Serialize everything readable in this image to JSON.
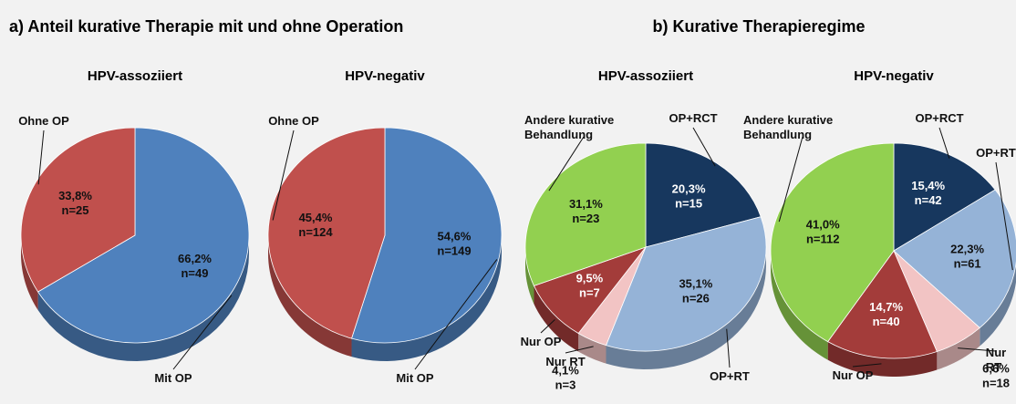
{
  "headings": [
    "a) Anteil kurative Therapie mit und ohne Operation",
    "b) Kurative Therapieregime"
  ],
  "chart_data": [
    {
      "type": "pie",
      "title": "HPV-assoziiert",
      "categories": [
        "Mit OP",
        "Ohne OP"
      ],
      "values": [
        66.2,
        33.8
      ],
      "value_labels": [
        "66,2%",
        "33,8%"
      ],
      "counts": [
        49,
        25
      ],
      "count_labels": [
        "n=49",
        "n=25"
      ],
      "colors": [
        "#4f81bd",
        "#c0504d"
      ]
    },
    {
      "type": "pie",
      "title": "HPV-negativ",
      "categories": [
        "Mit OP",
        "Ohne OP"
      ],
      "values": [
        54.6,
        45.4
      ],
      "value_labels": [
        "54,6%",
        "45,4%"
      ],
      "counts": [
        149,
        124
      ],
      "count_labels": [
        "n=149",
        "n=124"
      ],
      "colors": [
        "#4f81bd",
        "#c0504d"
      ]
    },
    {
      "type": "pie",
      "title": "HPV-assoziiert",
      "categories": [
        "OP+RCT",
        "OP+RT",
        "Nur RT",
        "Nur OP",
        "Andere kurative Behandlung"
      ],
      "values": [
        20.3,
        35.1,
        4.1,
        9.5,
        31.1
      ],
      "value_labels": [
        "20,3%",
        "35,1%",
        "4,1%",
        "9,5%",
        "31,1%"
      ],
      "counts": [
        15,
        26,
        3,
        7,
        23
      ],
      "count_labels": [
        "n=15",
        "n=26",
        "n=3",
        "n=7",
        "n=23"
      ],
      "colors": [
        "#17375e",
        "#95b3d7",
        "#f2c4c4",
        "#a33c3a",
        "#92d050"
      ]
    },
    {
      "type": "pie",
      "title": "HPV-negativ",
      "categories": [
        "OP+RCT",
        "OP+RT",
        "Nur RT",
        "Nur OP",
        "Andere kurative Behandlung"
      ],
      "values": [
        15.4,
        22.3,
        6.6,
        14.7,
        41.0
      ],
      "value_labels": [
        "15,4%",
        "22,3%",
        "6,6%",
        "14,7%",
        "41,0%"
      ],
      "counts": [
        42,
        61,
        18,
        40,
        112
      ],
      "count_labels": [
        "n=42",
        "n=61",
        "n=18",
        "n=40",
        "n=112"
      ],
      "colors": [
        "#17375e",
        "#95b3d7",
        "#f2c4c4",
        "#a33c3a",
        "#92d050"
      ]
    }
  ]
}
